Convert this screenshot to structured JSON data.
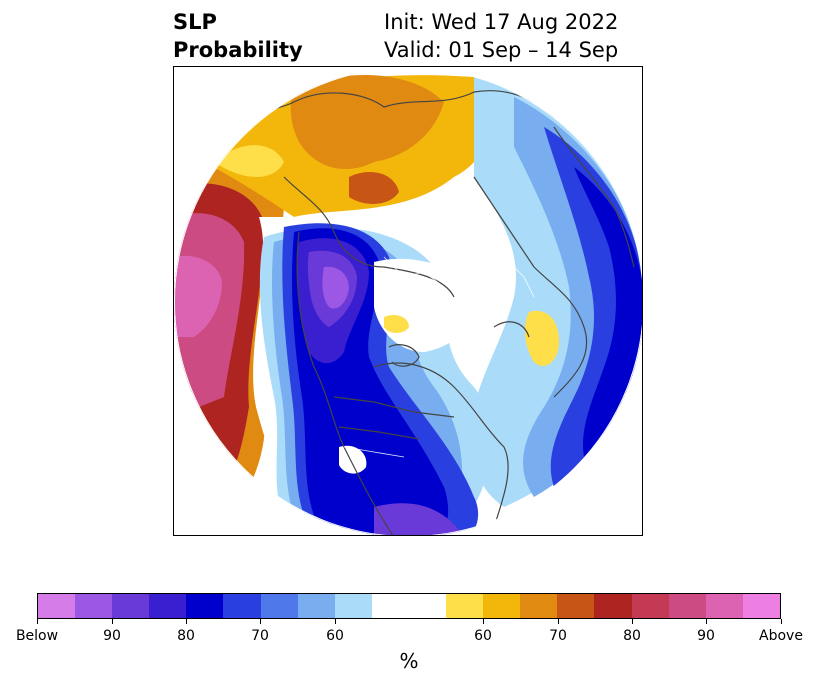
{
  "header": {
    "left_line1": "SLP",
    "left_line2": "Probability",
    "right_line1": "Init: Wed 17 Aug 2022",
    "right_line2": "Valid: 01 Sep – 14 Sep"
  },
  "colorbar": {
    "colors": [
      "#d57ce9",
      "#9c57e4",
      "#6a3ad8",
      "#3a1fd1",
      "#0000cc",
      "#2a3fe0",
      "#4f78ea",
      "#78aef0",
      "#aadcfa",
      "#ffffff",
      "#ffffff",
      "#fede49",
      "#f3b70b",
      "#e08a12",
      "#c75516",
      "#ad2421",
      "#c43a55",
      "#cb4b82",
      "#dc63b1",
      "#ec7fe1"
    ],
    "labels": [
      "Below",
      "90",
      "80",
      "70",
      "60",
      "60",
      "70",
      "80",
      "90",
      "Above"
    ],
    "unit": "%"
  },
  "map": {
    "colors": {
      "pink": "#dc63b1",
      "rose": "#cb4b82",
      "crimson": "#ad2421",
      "rust": "#c75516",
      "orange": "#e08a12",
      "gold": "#f3b70b",
      "yellow": "#fede49",
      "paleblue": "#aadcfa",
      "lightblue": "#78aef0",
      "midblue": "#4f78ea",
      "blue": "#2a3fe0",
      "navy": "#0000cc",
      "indigo": "#3a1fd1",
      "violet": "#6a3ad8",
      "purple": "#9c57e4",
      "coast": "#444444"
    }
  }
}
